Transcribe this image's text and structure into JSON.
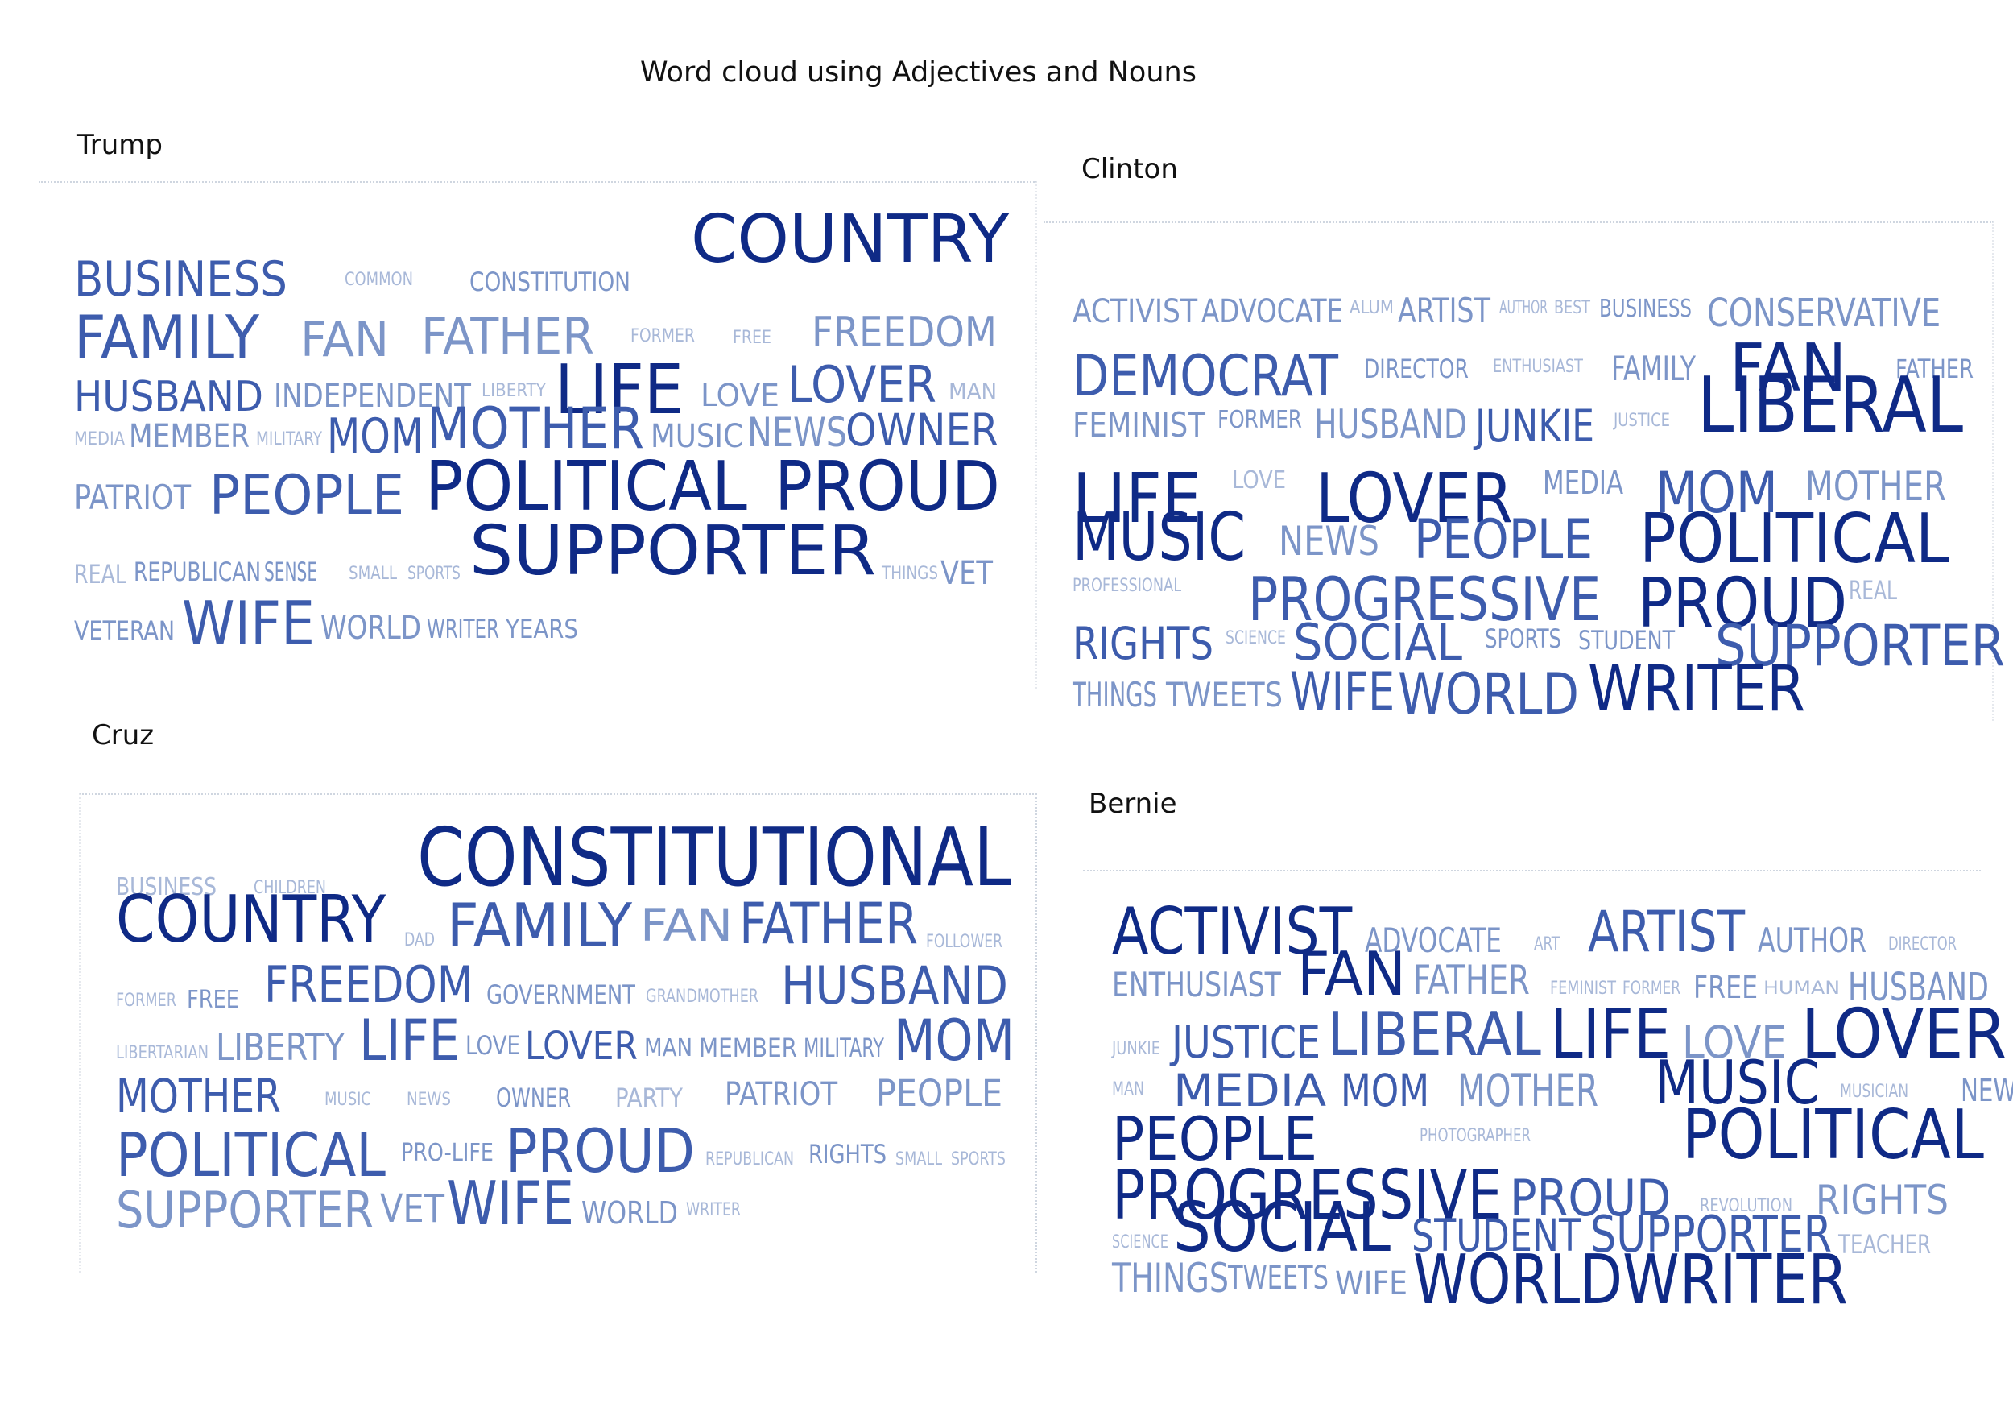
{
  "title": "Word cloud using Adjectives and Nouns",
  "colors": {
    "dark": "#0f2a86",
    "mid": "#3d5cad",
    "light": "#7c95c8",
    "pale": "#a8b8d8"
  },
  "clouds": [
    {
      "id": "trump",
      "label": "Trump",
      "words": [
        {
          "text": "BUSINESS",
          "tone": "mid"
        },
        {
          "text": "COMMON",
          "tone": "pale"
        },
        {
          "text": "CONSTITUTION",
          "tone": "light"
        },
        {
          "text": "COUNTRY",
          "tone": "dark"
        },
        {
          "text": "FAMILY",
          "tone": "mid"
        },
        {
          "text": "FAN",
          "tone": "light"
        },
        {
          "text": "FATHER",
          "tone": "light"
        },
        {
          "text": "FORMER",
          "tone": "pale"
        },
        {
          "text": "FREE",
          "tone": "pale"
        },
        {
          "text": "FREEDOM",
          "tone": "light"
        },
        {
          "text": "HUSBAND",
          "tone": "mid"
        },
        {
          "text": "INDEPENDENT",
          "tone": "light"
        },
        {
          "text": "LIBERTY",
          "tone": "pale"
        },
        {
          "text": "LIFE",
          "tone": "dark"
        },
        {
          "text": "LOVE",
          "tone": "light"
        },
        {
          "text": "LOVER",
          "tone": "mid"
        },
        {
          "text": "MAN",
          "tone": "pale"
        },
        {
          "text": "MEDIA",
          "tone": "pale"
        },
        {
          "text": "MEMBER",
          "tone": "light"
        },
        {
          "text": "MILITARY",
          "tone": "pale"
        },
        {
          "text": "MOM",
          "tone": "mid"
        },
        {
          "text": "MOTHER",
          "tone": "mid"
        },
        {
          "text": "MUSIC",
          "tone": "light"
        },
        {
          "text": "NEWS",
          "tone": "light"
        },
        {
          "text": "OWNER",
          "tone": "mid"
        },
        {
          "text": "PATRIOT",
          "tone": "light"
        },
        {
          "text": "PEOPLE",
          "tone": "mid"
        },
        {
          "text": "POLITICAL",
          "tone": "dark"
        },
        {
          "text": "PROUD",
          "tone": "dark"
        },
        {
          "text": "SUPPORTER",
          "tone": "dark"
        },
        {
          "text": "REAL",
          "tone": "pale"
        },
        {
          "text": "REPUBLICAN",
          "tone": "light"
        },
        {
          "text": "SENSE",
          "tone": "light"
        },
        {
          "text": "SMALL",
          "tone": "pale"
        },
        {
          "text": "SPORTS",
          "tone": "pale"
        },
        {
          "text": "THINGS",
          "tone": "pale"
        },
        {
          "text": "VET",
          "tone": "light"
        },
        {
          "text": "VETERAN",
          "tone": "light"
        },
        {
          "text": "WIFE",
          "tone": "mid"
        },
        {
          "text": "WORLD",
          "tone": "light"
        },
        {
          "text": "WRITER",
          "tone": "light"
        },
        {
          "text": "YEARS",
          "tone": "light"
        }
      ]
    },
    {
      "id": "clinton",
      "label": "Clinton",
      "words": [
        {
          "text": "ACTIVIST",
          "tone": "light"
        },
        {
          "text": "ADVOCATE",
          "tone": "light"
        },
        {
          "text": "ALUM",
          "tone": "pale"
        },
        {
          "text": "ARTIST",
          "tone": "light"
        },
        {
          "text": "AUTHOR",
          "tone": "pale"
        },
        {
          "text": "BEST",
          "tone": "pale"
        },
        {
          "text": "BUSINESS",
          "tone": "light"
        },
        {
          "text": "CONSERVATIVE",
          "tone": "light"
        },
        {
          "text": "DEMOCRAT",
          "tone": "mid"
        },
        {
          "text": "DIRECTOR",
          "tone": "light"
        },
        {
          "text": "ENTHUSIAST",
          "tone": "pale"
        },
        {
          "text": "FAMILY",
          "tone": "light"
        },
        {
          "text": "FAN",
          "tone": "dark"
        },
        {
          "text": "FATHER",
          "tone": "light"
        },
        {
          "text": "FEMINIST",
          "tone": "light"
        },
        {
          "text": "FORMER",
          "tone": "light"
        },
        {
          "text": "HUSBAND",
          "tone": "light"
        },
        {
          "text": "JUNKIE",
          "tone": "mid"
        },
        {
          "text": "JUSTICE",
          "tone": "pale"
        },
        {
          "text": "LIBERAL",
          "tone": "dark"
        },
        {
          "text": "LIFE",
          "tone": "dark"
        },
        {
          "text": "LOVE",
          "tone": "pale"
        },
        {
          "text": "LOVER",
          "tone": "dark"
        },
        {
          "text": "MEDIA",
          "tone": "light"
        },
        {
          "text": "MOM",
          "tone": "mid"
        },
        {
          "text": "MOTHER",
          "tone": "light"
        },
        {
          "text": "MUSIC",
          "tone": "dark"
        },
        {
          "text": "NEWS",
          "tone": "light"
        },
        {
          "text": "PEOPLE",
          "tone": "mid"
        },
        {
          "text": "POLITICAL",
          "tone": "dark"
        },
        {
          "text": "PROFESSIONAL",
          "tone": "pale"
        },
        {
          "text": "PROGRESSIVE",
          "tone": "mid"
        },
        {
          "text": "PROUD",
          "tone": "dark"
        },
        {
          "text": "REAL",
          "tone": "pale"
        },
        {
          "text": "RIGHTS",
          "tone": "mid"
        },
        {
          "text": "SCIENCE",
          "tone": "pale"
        },
        {
          "text": "SOCIAL",
          "tone": "mid"
        },
        {
          "text": "SPORTS",
          "tone": "light"
        },
        {
          "text": "STUDENT",
          "tone": "light"
        },
        {
          "text": "SUPPORTER",
          "tone": "mid"
        },
        {
          "text": "THINGS",
          "tone": "light"
        },
        {
          "text": "TWEETS",
          "tone": "light"
        },
        {
          "text": "WIFE",
          "tone": "mid"
        },
        {
          "text": "WORLD",
          "tone": "mid"
        },
        {
          "text": "WRITER",
          "tone": "dark"
        }
      ]
    },
    {
      "id": "cruz",
      "label": "Cruz",
      "words": [
        {
          "text": "BUSINESS",
          "tone": "pale"
        },
        {
          "text": "CHILDREN",
          "tone": "pale"
        },
        {
          "text": "CONSTITUTIONAL",
          "tone": "dark"
        },
        {
          "text": "COUNTRY",
          "tone": "dark"
        },
        {
          "text": "DAD",
          "tone": "pale"
        },
        {
          "text": "FAMILY",
          "tone": "mid"
        },
        {
          "text": "FAN",
          "tone": "light"
        },
        {
          "text": "FATHER",
          "tone": "mid"
        },
        {
          "text": "FOLLOWER",
          "tone": "pale"
        },
        {
          "text": "FORMER",
          "tone": "pale"
        },
        {
          "text": "FREE",
          "tone": "light"
        },
        {
          "text": "FREEDOM",
          "tone": "mid"
        },
        {
          "text": "GOVERNMENT",
          "tone": "light"
        },
        {
          "text": "GRANDMOTHER",
          "tone": "pale"
        },
        {
          "text": "HUSBAND",
          "tone": "mid"
        },
        {
          "text": "LIBERTARIAN",
          "tone": "pale"
        },
        {
          "text": "LIBERTY",
          "tone": "light"
        },
        {
          "text": "LIFE",
          "tone": "mid"
        },
        {
          "text": "LOVE",
          "tone": "light"
        },
        {
          "text": "LOVER",
          "tone": "mid"
        },
        {
          "text": "MAN",
          "tone": "light"
        },
        {
          "text": "MEMBER",
          "tone": "light"
        },
        {
          "text": "MILITARY",
          "tone": "light"
        },
        {
          "text": "MOM",
          "tone": "mid"
        },
        {
          "text": "MOTHER",
          "tone": "mid"
        },
        {
          "text": "MUSIC",
          "tone": "pale"
        },
        {
          "text": "NEWS",
          "tone": "pale"
        },
        {
          "text": "OWNER",
          "tone": "light"
        },
        {
          "text": "PARTY",
          "tone": "pale"
        },
        {
          "text": "PATRIOT",
          "tone": "light"
        },
        {
          "text": "PEOPLE",
          "tone": "light"
        },
        {
          "text": "POLITICAL",
          "tone": "mid"
        },
        {
          "text": "PRO-LIFE",
          "tone": "light"
        },
        {
          "text": "PROUD",
          "tone": "mid"
        },
        {
          "text": "REPUBLICAN",
          "tone": "pale"
        },
        {
          "text": "RIGHTS",
          "tone": "light"
        },
        {
          "text": "SMALL",
          "tone": "pale"
        },
        {
          "text": "SPORTS",
          "tone": "pale"
        },
        {
          "text": "SUPPORTER",
          "tone": "light"
        },
        {
          "text": "VET",
          "tone": "light"
        },
        {
          "text": "WIFE",
          "tone": "mid"
        },
        {
          "text": "WORLD",
          "tone": "light"
        },
        {
          "text": "WRITER",
          "tone": "pale"
        }
      ]
    },
    {
      "id": "bernie",
      "label": "Bernie",
      "words": [
        {
          "text": "ACTIVIST",
          "tone": "dark"
        },
        {
          "text": "ADVOCATE",
          "tone": "light"
        },
        {
          "text": "ART",
          "tone": "pale"
        },
        {
          "text": "ARTIST",
          "tone": "mid"
        },
        {
          "text": "AUTHOR",
          "tone": "light"
        },
        {
          "text": "DIRECTOR",
          "tone": "pale"
        },
        {
          "text": "ENTHUSIAST",
          "tone": "light"
        },
        {
          "text": "FAN",
          "tone": "dark"
        },
        {
          "text": "FATHER",
          "tone": "light"
        },
        {
          "text": "FEMINIST",
          "tone": "pale"
        },
        {
          "text": "FORMER",
          "tone": "pale"
        },
        {
          "text": "FREE",
          "tone": "light"
        },
        {
          "text": "HUMAN",
          "tone": "pale"
        },
        {
          "text": "HUSBAND",
          "tone": "light"
        },
        {
          "text": "JUNKIE",
          "tone": "pale"
        },
        {
          "text": "JUSTICE",
          "tone": "mid"
        },
        {
          "text": "LIBERAL",
          "tone": "mid"
        },
        {
          "text": "LIFE",
          "tone": "dark"
        },
        {
          "text": "LOVE",
          "tone": "light"
        },
        {
          "text": "LOVER",
          "tone": "dark"
        },
        {
          "text": "MAN",
          "tone": "pale"
        },
        {
          "text": "MEDIA",
          "tone": "mid"
        },
        {
          "text": "MOM",
          "tone": "mid"
        },
        {
          "text": "MOTHER",
          "tone": "light"
        },
        {
          "text": "MUSIC",
          "tone": "dark"
        },
        {
          "text": "MUSICIAN",
          "tone": "pale"
        },
        {
          "text": "NEWS",
          "tone": "light"
        },
        {
          "text": "PEOPLE",
          "tone": "dark"
        },
        {
          "text": "PHOTOGRAPHER",
          "tone": "pale"
        },
        {
          "text": "POLITICAL",
          "tone": "dark"
        },
        {
          "text": "PROGRESSIVE",
          "tone": "dark"
        },
        {
          "text": "PROUD",
          "tone": "mid"
        },
        {
          "text": "REVOLUTION",
          "tone": "pale"
        },
        {
          "text": "RIGHTS",
          "tone": "light"
        },
        {
          "text": "SCIENCE",
          "tone": "pale"
        },
        {
          "text": "SOCIAL",
          "tone": "dark"
        },
        {
          "text": "STUDENT",
          "tone": "mid"
        },
        {
          "text": "SUPPORTER",
          "tone": "mid"
        },
        {
          "text": "TEACHER",
          "tone": "pale"
        },
        {
          "text": "THINGS",
          "tone": "light"
        },
        {
          "text": "TWEETS",
          "tone": "light"
        },
        {
          "text": "WIFE",
          "tone": "light"
        },
        {
          "text": "WORLD",
          "tone": "dark"
        },
        {
          "text": "WRITER",
          "tone": "dark"
        }
      ]
    }
  ]
}
